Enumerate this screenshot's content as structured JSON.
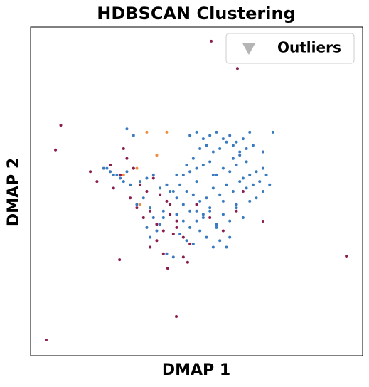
{
  "chart_data": {
    "type": "scatter",
    "title": "HDBSCAN Clustering",
    "x_label": "DMAP 1",
    "y_label": "DMAP 2",
    "xlim": [
      0,
      100
    ],
    "ylim": [
      0,
      100
    ],
    "legend_position": "upper right",
    "series": [
      {
        "name": "Outliers",
        "color": "#b5b5b5",
        "marker": "triangle",
        "x": [],
        "values": []
      },
      {
        "color": "#3a7bbf",
        "marker": "circle",
        "x": [
          48,
          50,
          52,
          54,
          56,
          58,
          60,
          62,
          64,
          66,
          51,
          53,
          55,
          57,
          59,
          61,
          63,
          65,
          67,
          49,
          47,
          46,
          48,
          50,
          52,
          54,
          56,
          58,
          60,
          62,
          64,
          66,
          68,
          70,
          71,
          69,
          67,
          65,
          63,
          61,
          59,
          57,
          55,
          53,
          51,
          49,
          47,
          45,
          44,
          46,
          50,
          54,
          58,
          62,
          66,
          70,
          72,
          68,
          64,
          60,
          56,
          52,
          48,
          44,
          40,
          38,
          36,
          34,
          32,
          30,
          28,
          26,
          24,
          23,
          25,
          27,
          29,
          31,
          33,
          35,
          37,
          39,
          41,
          43,
          42,
          40,
          38,
          36,
          45,
          47,
          49,
          51,
          53,
          55,
          57,
          59,
          41,
          43,
          39,
          37,
          35,
          46,
          48,
          52,
          56,
          60,
          62,
          58,
          54,
          50,
          44,
          42,
          50,
          55,
          61,
          65,
          63,
          73,
          70,
          29,
          31,
          22
        ],
        "values": [
          67,
          68,
          66,
          67,
          68,
          66,
          67,
          65,
          66,
          68,
          63,
          64,
          62,
          63,
          65,
          64,
          62,
          63,
          64,
          60,
          58,
          55,
          56,
          57,
          58,
          59,
          55,
          57,
          56,
          58,
          54,
          55,
          56,
          57,
          55,
          53,
          52,
          51,
          53,
          50,
          52,
          49,
          51,
          48,
          47,
          49,
          50,
          52,
          55,
          46,
          44,
          45,
          43,
          46,
          47,
          50,
          52,
          48,
          42,
          41,
          40,
          42,
          39,
          43,
          42,
          40,
          45,
          48,
          46,
          52,
          53,
          55,
          56,
          57,
          55,
          54,
          56,
          57,
          53,
          54,
          55,
          51,
          52,
          50,
          46,
          44,
          38,
          36,
          37,
          35,
          34,
          38,
          36,
          33,
          35,
          33,
          31,
          30,
          40,
          42,
          39,
          41,
          44,
          43,
          39,
          36,
          45,
          47,
          44,
          41,
          48,
          50,
          53,
          55,
          60,
          59,
          61,
          68,
          62,
          69,
          67,
          57
        ]
      },
      {
        "color": "#8b1e4f",
        "marker": "circle",
        "x": [
          9.1,
          7.5,
          54.4,
          62.3,
          95.1,
          4.7,
          43.9,
          70,
          26.8,
          41.3,
          47.3,
          30,
          32,
          34,
          36,
          38,
          40,
          42,
          44,
          46,
          48,
          33,
          35,
          37,
          39,
          41,
          43,
          31,
          29,
          27,
          25,
          36,
          38,
          40,
          42,
          44,
          46,
          50,
          54,
          58,
          62,
          64,
          28,
          24,
          20,
          18
        ],
        "values": [
          70.1,
          62.6,
          95.7,
          87.4,
          30.3,
          4.8,
          11.9,
          40.9,
          29.2,
          26.6,
          28.4,
          48,
          45,
          42,
          44,
          40,
          38,
          46,
          41,
          36,
          34,
          52,
          50,
          54,
          49,
          47,
          37,
          57,
          60,
          55,
          51,
          33,
          35,
          31,
          43,
          39,
          30,
          46,
          42,
          38,
          44,
          50,
          63,
          58,
          53,
          56
        ]
      },
      {
        "color": "#f08a3c",
        "marker": "circle",
        "x": [
          35,
          41,
          32,
          38,
          28,
          33
        ],
        "values": [
          68,
          68,
          57,
          61,
          55,
          46
        ]
      }
    ]
  }
}
